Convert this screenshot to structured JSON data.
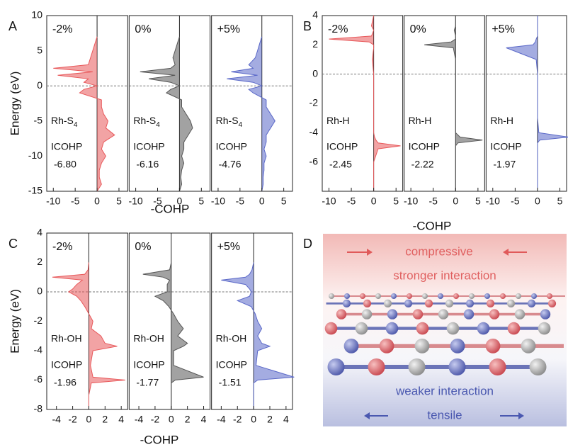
{
  "chart_data": [
    {
      "type": "cohp",
      "panel_label": "A",
      "ylabel": "Energy (eV)",
      "xlabel": "-COHP",
      "ylim": [
        -15,
        10
      ],
      "yticks": [
        -15,
        -10,
        -5,
        0,
        5,
        10
      ],
      "xlim": [
        -11.5,
        7
      ],
      "xticks": [
        -10,
        -5,
        0,
        5
      ],
      "subplots": [
        {
          "strain": "-2%",
          "bond": "Rh-S",
          "bond_sub": "4",
          "icohp_title": "ICOHP",
          "icohp": "-6.80",
          "color": "#e8585a",
          "energy": [
            7,
            6,
            5,
            4,
            3,
            2.5,
            2,
            1.5,
            1,
            0.5,
            0,
            -0.5,
            -1,
            -2,
            -3,
            -4,
            -5,
            -6,
            -7,
            -8,
            -9,
            -10,
            -11,
            -12,
            -13,
            -14,
            -15
          ],
          "values": [
            0,
            -0.5,
            -1,
            -1.5,
            -2,
            -10,
            -1,
            -9,
            -2,
            -3,
            0,
            -3,
            -4,
            1,
            1,
            1.5,
            2.5,
            2,
            4,
            1.5,
            1,
            2,
            1,
            0.5,
            0.5,
            1,
            0
          ]
        },
        {
          "strain": "0%",
          "bond": "Rh-S",
          "bond_sub": "4",
          "icohp_title": "ICOHP",
          "icohp": "-6.16",
          "color": "#555555",
          "energy": [
            7,
            6,
            5,
            4,
            3,
            2.5,
            2,
            1.5,
            1,
            0.5,
            0,
            -0.5,
            -1,
            -2,
            -3,
            -4,
            -5,
            -6,
            -7,
            -8,
            -9,
            -10,
            -11,
            -12,
            -13,
            -14,
            -15
          ],
          "values": [
            0,
            -0.5,
            -1,
            -1.5,
            -1,
            -2,
            -9,
            -1,
            -7,
            -2,
            0,
            -2,
            -3,
            0.5,
            0.5,
            1.5,
            2.5,
            3,
            2,
            1,
            1,
            0.5,
            1,
            0.5,
            0.3,
            0.5,
            0
          ]
        },
        {
          "strain": "+5%",
          "bond": "Rh-S",
          "bond_sub": "4",
          "icohp_title": "ICOHP",
          "icohp": "-4.76",
          "color": "#5a68c8",
          "energy": [
            7,
            6,
            5,
            4,
            3,
            2.5,
            2,
            1.5,
            1,
            0.5,
            0,
            -0.5,
            -1,
            -2,
            -3,
            -4,
            -5,
            -6,
            -7,
            -8,
            -9,
            -10,
            -11,
            -12,
            -13,
            -14,
            -15
          ],
          "values": [
            0,
            -0.5,
            -1,
            -1.5,
            -3,
            -2,
            -7,
            -1,
            -8,
            -2,
            0,
            -3,
            -2,
            1,
            1,
            2,
            3,
            2,
            1,
            1,
            0.5,
            1,
            0.5,
            0.5,
            0.3,
            0.3,
            0
          ]
        }
      ]
    },
    {
      "type": "cohp",
      "panel_label": "B",
      "xlabel": "-COHP",
      "ylim": [
        -8,
        4
      ],
      "yticks": [
        -6,
        -4,
        -2,
        0,
        2,
        4
      ],
      "xlim": [
        -11.5,
        6.5
      ],
      "xticks": [
        -10,
        -5,
        0,
        5
      ],
      "subplots": [
        {
          "strain": "-2%",
          "bond": "Rh-H",
          "icohp_title": "ICOHP",
          "icohp": "-2.45",
          "color": "#e8585a",
          "energy": [
            4,
            3.3,
            3,
            2.6,
            2.4,
            2.2,
            2,
            1.8,
            1,
            0,
            -1,
            -3,
            -4,
            -4.3,
            -4.5,
            -4.7,
            -4.9,
            -5.1,
            -6,
            -8
          ],
          "values": [
            0,
            -0.5,
            0,
            -0.5,
            -10,
            -1,
            0,
            0,
            -0.3,
            0,
            0,
            0,
            0,
            0.2,
            0.5,
            1,
            6,
            1,
            0,
            0
          ]
        },
        {
          "strain": "0%",
          "bond": "Rh-H",
          "icohp_title": "ICOHP",
          "icohp": "-2.22",
          "color": "#555555",
          "energy": [
            4,
            3.3,
            3,
            2.6,
            2.4,
            2.2,
            2,
            1.8,
            1,
            0,
            -1,
            -3,
            -4,
            -4.3,
            -4.5,
            -4.7,
            -4.9,
            -5.1,
            -6,
            -8
          ],
          "values": [
            0,
            0,
            -0.3,
            0,
            0,
            -1,
            -7,
            -0.5,
            0,
            0,
            0,
            0,
            0,
            1,
            6,
            0.5,
            0,
            0,
            0,
            0
          ]
        },
        {
          "strain": "+5%",
          "bond": "Rh-H",
          "icohp_title": "ICOHP",
          "icohp": "-1.97",
          "color": "#5a68c8",
          "energy": [
            4,
            3.3,
            3,
            2.6,
            2.4,
            2.2,
            2,
            1.8,
            1,
            0,
            -1,
            -3,
            -4,
            -4.3,
            -4.5,
            -4.7,
            -4.9,
            -5.1,
            -6,
            -8
          ],
          "values": [
            0,
            0,
            0,
            0,
            -0.3,
            -0.5,
            -1,
            -7,
            -0.3,
            0,
            0,
            0,
            0.3,
            7,
            0.5,
            0,
            0,
            0,
            0,
            0
          ]
        }
      ]
    },
    {
      "type": "cohp",
      "panel_label": "C",
      "ylabel": "Energy (eV)",
      "xlabel": "-COHP",
      "ylim": [
        -8,
        4
      ],
      "yticks": [
        -8,
        -6,
        -4,
        -2,
        0,
        2,
        4
      ],
      "xlim": [
        -5.2,
        4.8
      ],
      "xticks": [
        -4,
        -2,
        0,
        2,
        4
      ],
      "subplots": [
        {
          "strain": "-2%",
          "bond": "Rh-OH",
          "icohp_title": "ICOHP",
          "icohp": "-1.96",
          "color": "#e8585a",
          "energy": [
            2,
            1.5,
            1.2,
            1,
            0.8,
            0.5,
            0.2,
            0,
            -0.3,
            -0.6,
            -1,
            -1.5,
            -2,
            -2.5,
            -3,
            -3.5,
            -3.7,
            -4,
            -5,
            -5.8,
            -6,
            -6.2,
            -7,
            -8
          ],
          "values": [
            0,
            -0.1,
            -0.5,
            -4.5,
            -0.8,
            -1.5,
            -2,
            -2.5,
            -1.5,
            -1,
            -0.5,
            0,
            0.5,
            0.3,
            1.5,
            2,
            3.5,
            0.5,
            0.2,
            0.5,
            4.5,
            0.3,
            0,
            0
          ]
        },
        {
          "strain": "0%",
          "bond": "Rh-OH",
          "icohp_title": "ICOHP",
          "icohp": "-1.77",
          "color": "#555555",
          "energy": [
            2,
            1.5,
            1.2,
            1,
            0.8,
            0.5,
            0.2,
            0,
            -0.3,
            -0.6,
            -1,
            -1.5,
            -2,
            -2.5,
            -3,
            -3.5,
            -3.7,
            -4,
            -5,
            -5.8,
            -6,
            -6.2,
            -7,
            -8
          ],
          "values": [
            0,
            -0.2,
            -3.5,
            -1,
            -0.2,
            -0.5,
            -0.5,
            -0.5,
            -2,
            -1,
            -0.3,
            0.3,
            0.8,
            1.5,
            0.8,
            2,
            1.5,
            0.3,
            0.3,
            4,
            0.5,
            0,
            0,
            0
          ]
        },
        {
          "strain": "+5%",
          "bond": "Rh-OH",
          "icohp_title": "ICOHP",
          "icohp": "-1.51",
          "color": "#5a68c8",
          "energy": [
            2,
            1.5,
            1.2,
            1,
            0.8,
            0.5,
            0.2,
            0,
            -0.3,
            -0.6,
            -1,
            -1.5,
            -2,
            -2.5,
            -3,
            -3.5,
            -3.7,
            -4,
            -5,
            -5.8,
            -6,
            -6.2,
            -7,
            -8
          ],
          "values": [
            0,
            -0.2,
            -0.5,
            -1,
            -4,
            -1,
            -0.5,
            -0.3,
            -0.5,
            -2,
            -0.3,
            0.2,
            0.5,
            1,
            0.5,
            1,
            2,
            0.5,
            0.3,
            5,
            0.5,
            0,
            0,
            0
          ]
        }
      ]
    }
  ],
  "illustration": {
    "panel_label": "D",
    "top_arrow_text": "compressive",
    "top_text": "stronger interaction",
    "bottom_text": "weaker interaction",
    "bottom_arrow_text": "tensile"
  }
}
